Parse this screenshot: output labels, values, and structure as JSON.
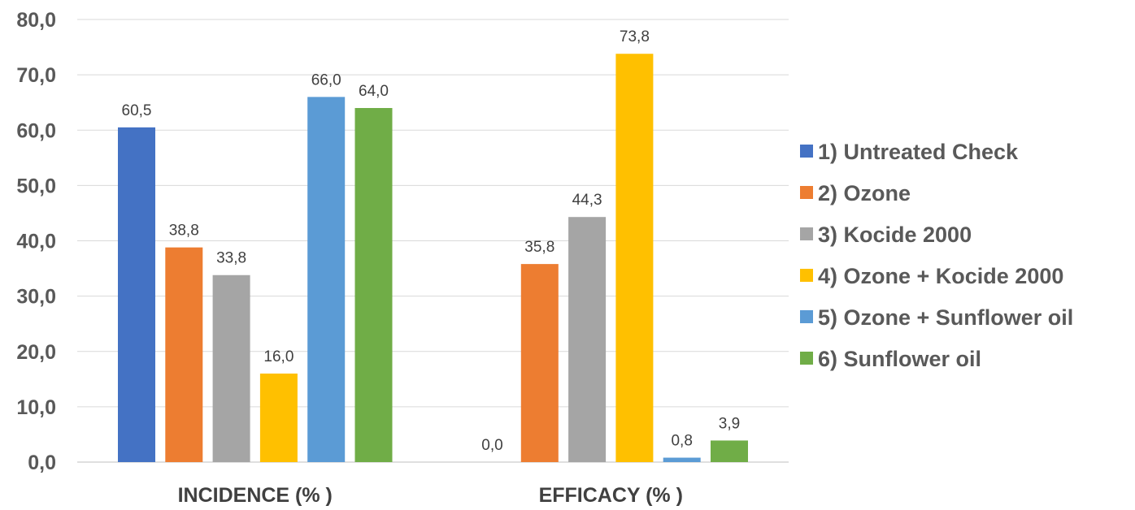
{
  "chart_data": {
    "type": "bar",
    "categories": [
      "INCIDENCE (%)",
      "EFFICACY (%)"
    ],
    "category_display": [
      "INCIDENCE (% )",
      "EFFICACY (% )"
    ],
    "series": [
      {
        "name": "1) Untreated Check",
        "values": [
          60.5,
          0.0
        ],
        "labels": [
          "60,5",
          "0,0"
        ],
        "color": "#4472C4"
      },
      {
        "name": "2) Ozone",
        "values": [
          38.8,
          35.8
        ],
        "labels": [
          "38,8",
          "35,8"
        ],
        "color": "#ED7D31"
      },
      {
        "name": "3) Kocide 2000",
        "values": [
          33.8,
          44.3
        ],
        "labels": [
          "33,8",
          "44,3"
        ],
        "color": "#A5A5A5"
      },
      {
        "name": "4) Ozone + Kocide 2000",
        "values": [
          16.0,
          73.8
        ],
        "labels": [
          "16,0",
          "73,8"
        ],
        "color": "#FFC000"
      },
      {
        "name": "5) Ozone + Sunflower oil",
        "values": [
          66.0,
          0.8
        ],
        "labels": [
          "66,0",
          "0,8"
        ],
        "color": "#5B9BD5"
      },
      {
        "name": "6) Sunflower oil",
        "values": [
          64.0,
          3.9
        ],
        "labels": [
          "64,0",
          "3,9"
        ],
        "color": "#70AD47"
      }
    ],
    "yticks": [
      "0,0",
      "10,0",
      "20,0",
      "30,0",
      "40,0",
      "50,0",
      "60,0",
      "70,0",
      "80,0"
    ],
    "ylim": [
      0,
      80
    ],
    "grid": true,
    "legend_position": "right"
  }
}
